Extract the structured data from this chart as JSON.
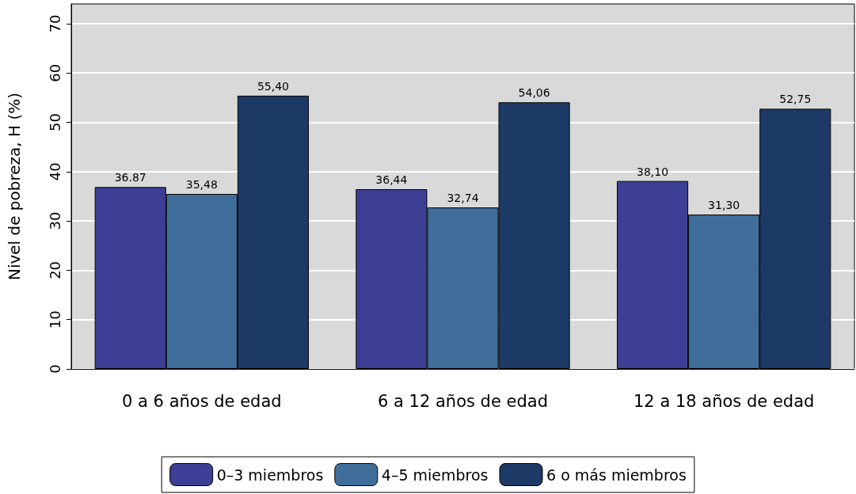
{
  "chart_data": {
    "type": "bar",
    "ylabel": "Nivel de pobreza, H (%)",
    "categories": [
      "0 a 6 años de edad",
      "6 a 12 años de edad",
      "12 a 18 años de edad"
    ],
    "series": [
      {
        "name": "0–3 miembros",
        "color": "#3c3f94",
        "values": [
          36.87,
          36.44,
          38.1
        ],
        "value_labels": [
          "36.87",
          "36,44",
          "38,10"
        ]
      },
      {
        "name": "4–5 miembros",
        "color": "#3f6e9a",
        "values": [
          35.48,
          32.74,
          31.3
        ],
        "value_labels": [
          "35,48",
          "32,74",
          "31,30"
        ]
      },
      {
        "name": "6 o más miembros",
        "color": "#1d3a66",
        "values": [
          55.4,
          54.06,
          52.75
        ],
        "value_labels": [
          "55,40",
          "54,06",
          "52,75"
        ]
      }
    ],
    "ylim": [
      0,
      74
    ],
    "yticks": [
      0,
      10,
      20,
      30,
      40,
      50,
      60,
      70
    ],
    "grid": "y",
    "legend": "bottom"
  }
}
